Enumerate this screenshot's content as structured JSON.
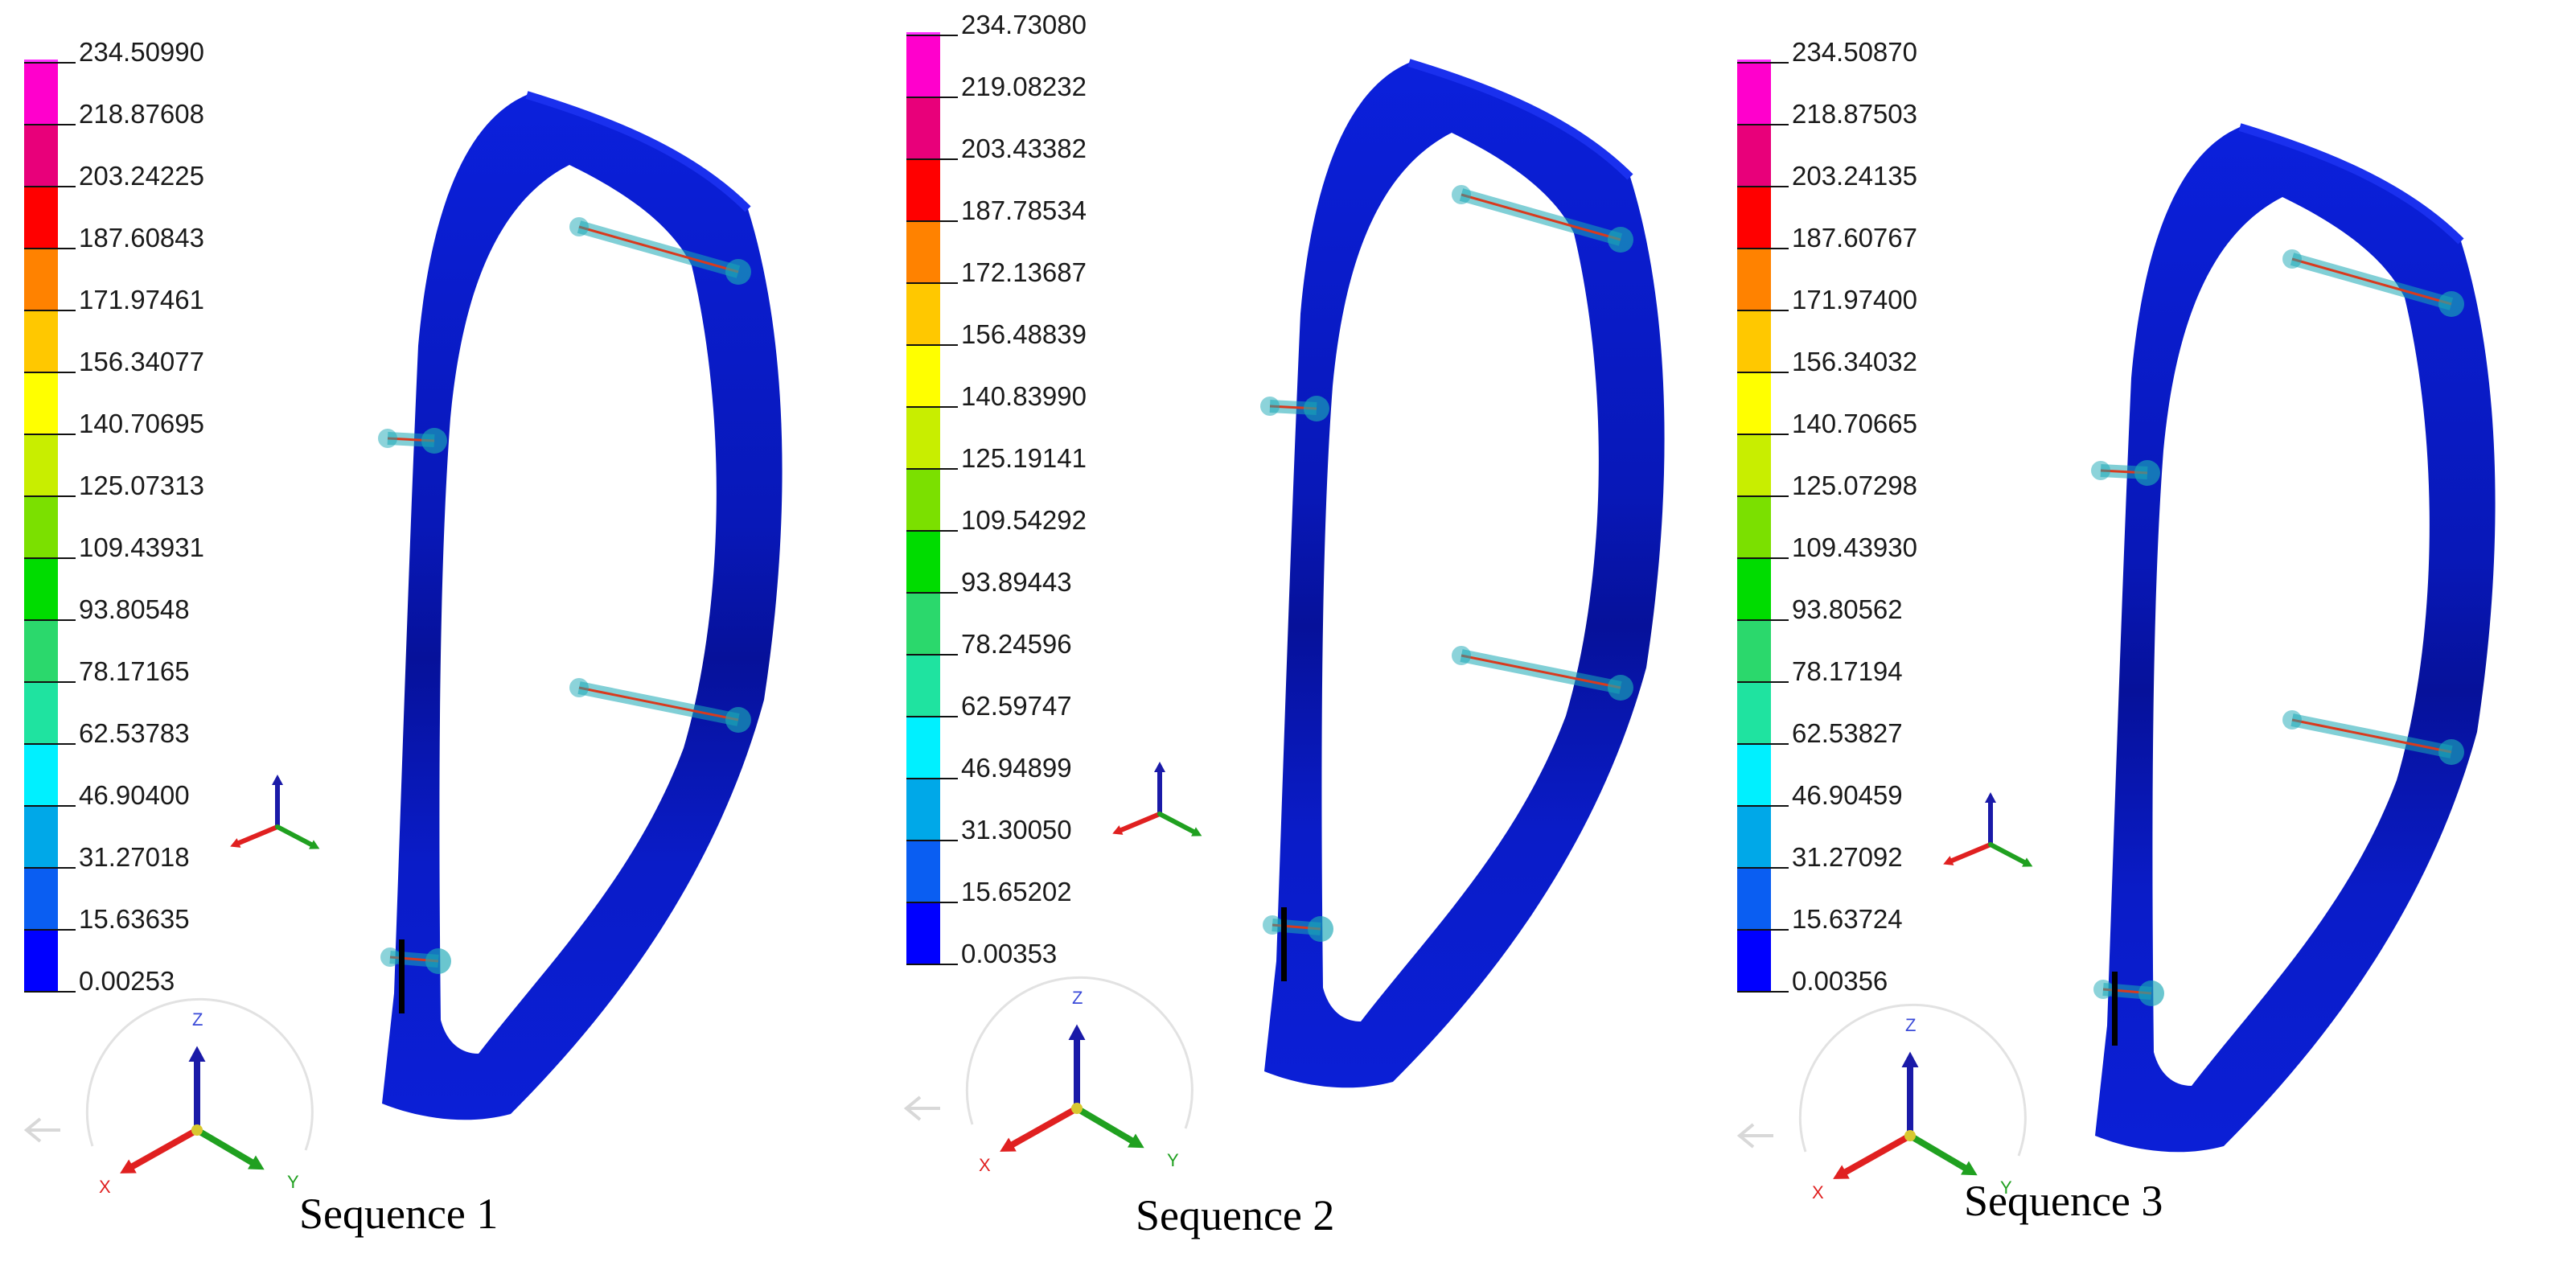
{
  "colors": {
    "band": [
      "#0000ff",
      "#0a5ef2",
      "#00a8e8",
      "#00f0ff",
      "#1fe3a0",
      "#2bd86c",
      "#00dc00",
      "#7be000",
      "#c8ee00",
      "#ffff00",
      "#ffc800",
      "#ff8200",
      "#ff0000",
      "#e8007a",
      "#ff00cc",
      "#ff33ff"
    ],
    "body_main": "#0b1fd6",
    "body_dark": "#06119a",
    "weld": "#d83a1e",
    "halo": "#1aa8b5",
    "axis_z": "#1a1aa8",
    "axis_x": "#e02020",
    "axis_y": "#20a020",
    "origin": "#d8c830"
  },
  "triad": {
    "z": "Z",
    "x": "X",
    "y": "Y"
  },
  "panels": [
    {
      "caption": "Sequence 1",
      "legend": [
        "234.50990",
        "218.87608",
        "203.24225",
        "187.60843",
        "171.97461",
        "156.34077",
        "140.70695",
        "125.07313",
        "109.43931",
        "93.80548",
        "78.17165",
        "62.53783",
        "46.90400",
        "31.27018",
        "15.63635",
        "0.00253"
      ]
    },
    {
      "caption": "Sequence 2",
      "legend": [
        "234.73080",
        "219.08232",
        "203.43382",
        "187.78534",
        "172.13687",
        "156.48839",
        "140.83990",
        "125.19141",
        "109.54292",
        "93.89443",
        "78.24596",
        "62.59747",
        "46.94899",
        "31.30050",
        "15.65202",
        "0.00353"
      ]
    },
    {
      "caption": "Sequence 3",
      "legend": [
        "234.50870",
        "218.87503",
        "203.24135",
        "187.60767",
        "171.97400",
        "156.34032",
        "140.70665",
        "125.07298",
        "109.43930",
        "93.80562",
        "78.17194",
        "62.53827",
        "46.90459",
        "31.27092",
        "15.63724",
        "0.00356"
      ]
    }
  ]
}
